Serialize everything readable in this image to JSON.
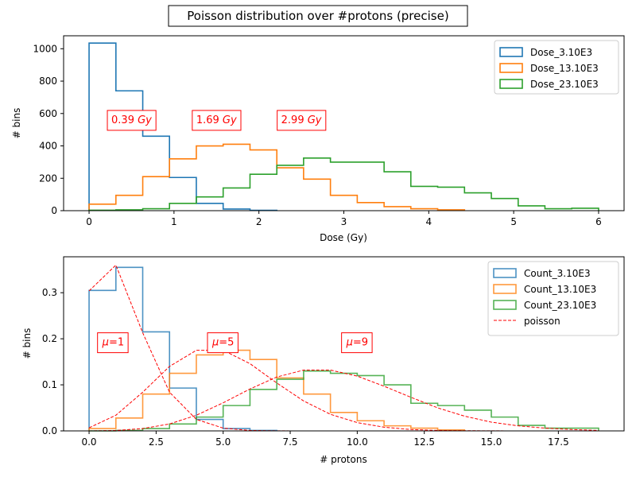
{
  "figure": {
    "title": "Poisson distribution over #protons (precise)"
  },
  "chart_data": [
    {
      "type": "step-histogram",
      "xlabel": "Dose (Gy)",
      "ylabel": "# bins",
      "xlim": [
        -0.3,
        6.3
      ],
      "ylim": [
        0,
        1080
      ],
      "xticks": [
        0,
        1,
        2,
        3,
        4,
        5,
        6
      ],
      "yticks": [
        0,
        200,
        400,
        600,
        800,
        1000
      ],
      "legend_position": "top-right",
      "series": [
        {
          "name": "Dose_3.10E3",
          "color": "#1f77b4",
          "edges": [
            0,
            0.316,
            0.632,
            0.947,
            1.263,
            1.579,
            1.895,
            2.211
          ],
          "values": [
            1035,
            740,
            460,
            205,
            45,
            10,
            2
          ]
        },
        {
          "name": "Dose_13.10E3",
          "color": "#ff7f0e",
          "edges": [
            0,
            0.316,
            0.632,
            0.947,
            1.263,
            1.579,
            1.895,
            2.211,
            2.526,
            2.842,
            3.158,
            3.474,
            3.789,
            4.105,
            4.421
          ],
          "values": [
            40,
            95,
            210,
            320,
            400,
            410,
            375,
            265,
            195,
            95,
            50,
            25,
            12,
            5
          ]
        },
        {
          "name": "Dose_23.10E3",
          "color": "#2ca02c",
          "edges": [
            0,
            0.316,
            0.632,
            0.947,
            1.263,
            1.579,
            1.895,
            2.211,
            2.526,
            2.842,
            3.158,
            3.474,
            3.789,
            4.105,
            4.421,
            4.737,
            5.053,
            5.368,
            5.684,
            6.0
          ],
          "values": [
            3,
            5,
            12,
            45,
            85,
            140,
            225,
            280,
            325,
            300,
            300,
            240,
            150,
            145,
            110,
            75,
            30,
            12,
            15
          ]
        }
      ],
      "annotations": [
        {
          "value": "0.39",
          "unit": "Gy",
          "x": 0.5,
          "y": 565
        },
        {
          "value": "1.69",
          "unit": "Gy",
          "x": 1.5,
          "y": 565
        },
        {
          "value": "2.99",
          "unit": "Gy",
          "x": 2.5,
          "y": 565
        }
      ]
    },
    {
      "type": "step-histogram",
      "xlabel": "# protons",
      "ylabel": "# bins",
      "xlim": [
        -0.95,
        19.95
      ],
      "ylim": [
        0,
        0.378
      ],
      "xticks": [
        0,
        2.5,
        5,
        7.5,
        10,
        12.5,
        15,
        17.5
      ],
      "xtick_labels": [
        "0.0",
        "2.5",
        "5.0",
        "7.5",
        "10.0",
        "12.5",
        "15.0",
        "17.5"
      ],
      "yticks": [
        0,
        0.1,
        0.2,
        0.3
      ],
      "ytick_labels": [
        "0.0",
        "0.1",
        "0.2",
        "0.3"
      ],
      "legend_position": "top-right",
      "series": [
        {
          "name": "Count_3.10E3",
          "color": "#1f77b4",
          "edges": [
            0,
            1,
            2,
            3,
            4,
            5,
            6,
            7
          ],
          "values": [
            0.305,
            0.355,
            0.215,
            0.093,
            0.025,
            0.005,
            0.001
          ]
        },
        {
          "name": "Count_13.10E3",
          "color": "#ff7f0e",
          "edges": [
            0,
            1,
            2,
            3,
            4,
            5,
            6,
            7,
            8,
            9,
            10,
            11,
            12,
            13,
            14
          ],
          "values": [
            0.005,
            0.028,
            0.08,
            0.125,
            0.165,
            0.175,
            0.155,
            0.115,
            0.08,
            0.04,
            0.022,
            0.011,
            0.006,
            0.002
          ]
        },
        {
          "name": "Count_23.10E3",
          "color": "#2ca02c",
          "edges": [
            0,
            1,
            2,
            3,
            4,
            5,
            6,
            7,
            8,
            9,
            10,
            11,
            12,
            13,
            14,
            15,
            16,
            17,
            18,
            19
          ],
          "values": [
            0,
            0.001,
            0.005,
            0.015,
            0.03,
            0.055,
            0.09,
            0.112,
            0.13,
            0.125,
            0.12,
            0.1,
            0.06,
            0.055,
            0.045,
            0.03,
            0.012,
            0.006,
            0.006
          ]
        },
        {
          "name": "poisson",
          "color": "#ff0000",
          "style": "dashed",
          "x": [
            0,
            1,
            2,
            3,
            4,
            5,
            6,
            7,
            8,
            9,
            10,
            11,
            12,
            13,
            14,
            15,
            16,
            17,
            18,
            19
          ],
          "curves": [
            [
              0.304,
              0.36,
              0.213,
              0.084,
              0.025,
              0.006,
              0.001,
              0.0002,
              0,
              0,
              0,
              0,
              0,
              0,
              0,
              0,
              0,
              0,
              0,
              0
            ],
            [
              0.0067,
              0.034,
              0.084,
              0.14,
              0.175,
              0.175,
              0.146,
              0.104,
              0.065,
              0.036,
              0.018,
              0.008,
              0.003,
              0.001,
              0.0005,
              0.0002,
              0,
              0,
              0,
              0
            ],
            [
              0.0001,
              0.001,
              0.005,
              0.015,
              0.034,
              0.061,
              0.091,
              0.117,
              0.132,
              0.132,
              0.119,
              0.097,
              0.073,
              0.05,
              0.032,
              0.019,
              0.011,
              0.006,
              0.003,
              0.001
            ]
          ]
        }
      ],
      "annotations": [
        {
          "symbol": "μ",
          "value": "=1",
          "x": 0.9,
          "y": 0.194
        },
        {
          "symbol": "μ",
          "value": "=5",
          "x": 5.0,
          "y": 0.194
        },
        {
          "symbol": "μ",
          "value": "=9",
          "x": 10.0,
          "y": 0.194
        }
      ]
    }
  ]
}
